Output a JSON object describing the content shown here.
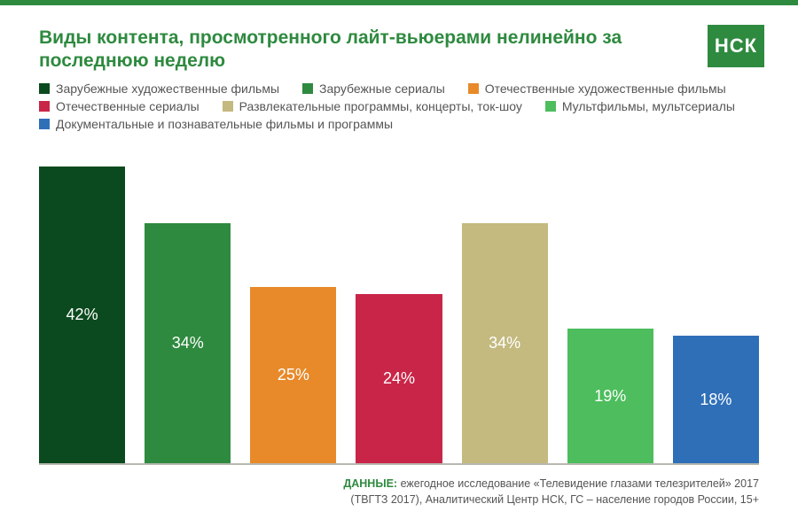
{
  "brand": {
    "logo_text": "НСК",
    "logo_bg": "#2e8a3f",
    "top_border_color": "#2e8a3f"
  },
  "title": "Виды контента, просмотренного лайт-вьюерами нелинейно за последнюю неделю",
  "title_color": "#2e8a3f",
  "chart": {
    "type": "bar",
    "max_value": 42,
    "baseline_color": "#b8b8b0",
    "value_label_color": "#ffffff",
    "value_label_fontsize": 18,
    "series": [
      {
        "label": "Зарубежные художественные фильмы",
        "value": 42,
        "display": "42%",
        "color": "#0b4a1e"
      },
      {
        "label": "Зарубежные сериалы",
        "value": 34,
        "display": "34%",
        "color": "#2e8a3f"
      },
      {
        "label": "Отечественные художественные фильмы",
        "value": 25,
        "display": "25%",
        "color": "#e88a2a"
      },
      {
        "label": "Отечественные сериалы",
        "value": 24,
        "display": "24%",
        "color": "#c92548"
      },
      {
        "label": "Развлекательные программы, концерты, ток-шоу",
        "value": 34,
        "display": "34%",
        "color": "#c4b97f"
      },
      {
        "label": "Мультфильмы, мультсериалы",
        "value": 19,
        "display": "19%",
        "color": "#4dbd5d"
      },
      {
        "label": "Документальные и познавательные фильмы и программы",
        "value": 18,
        "display": "18%",
        "color": "#2f6fb8"
      }
    ]
  },
  "source": {
    "label": "ДАННЫЕ:",
    "text_line1": "ежегодное исследование «Телевидение глазами телезрителей» 2017",
    "text_line2": "(ТВГТЗ 2017),  Аналитический Центр НСК, ГС – население городов России, 15+"
  }
}
